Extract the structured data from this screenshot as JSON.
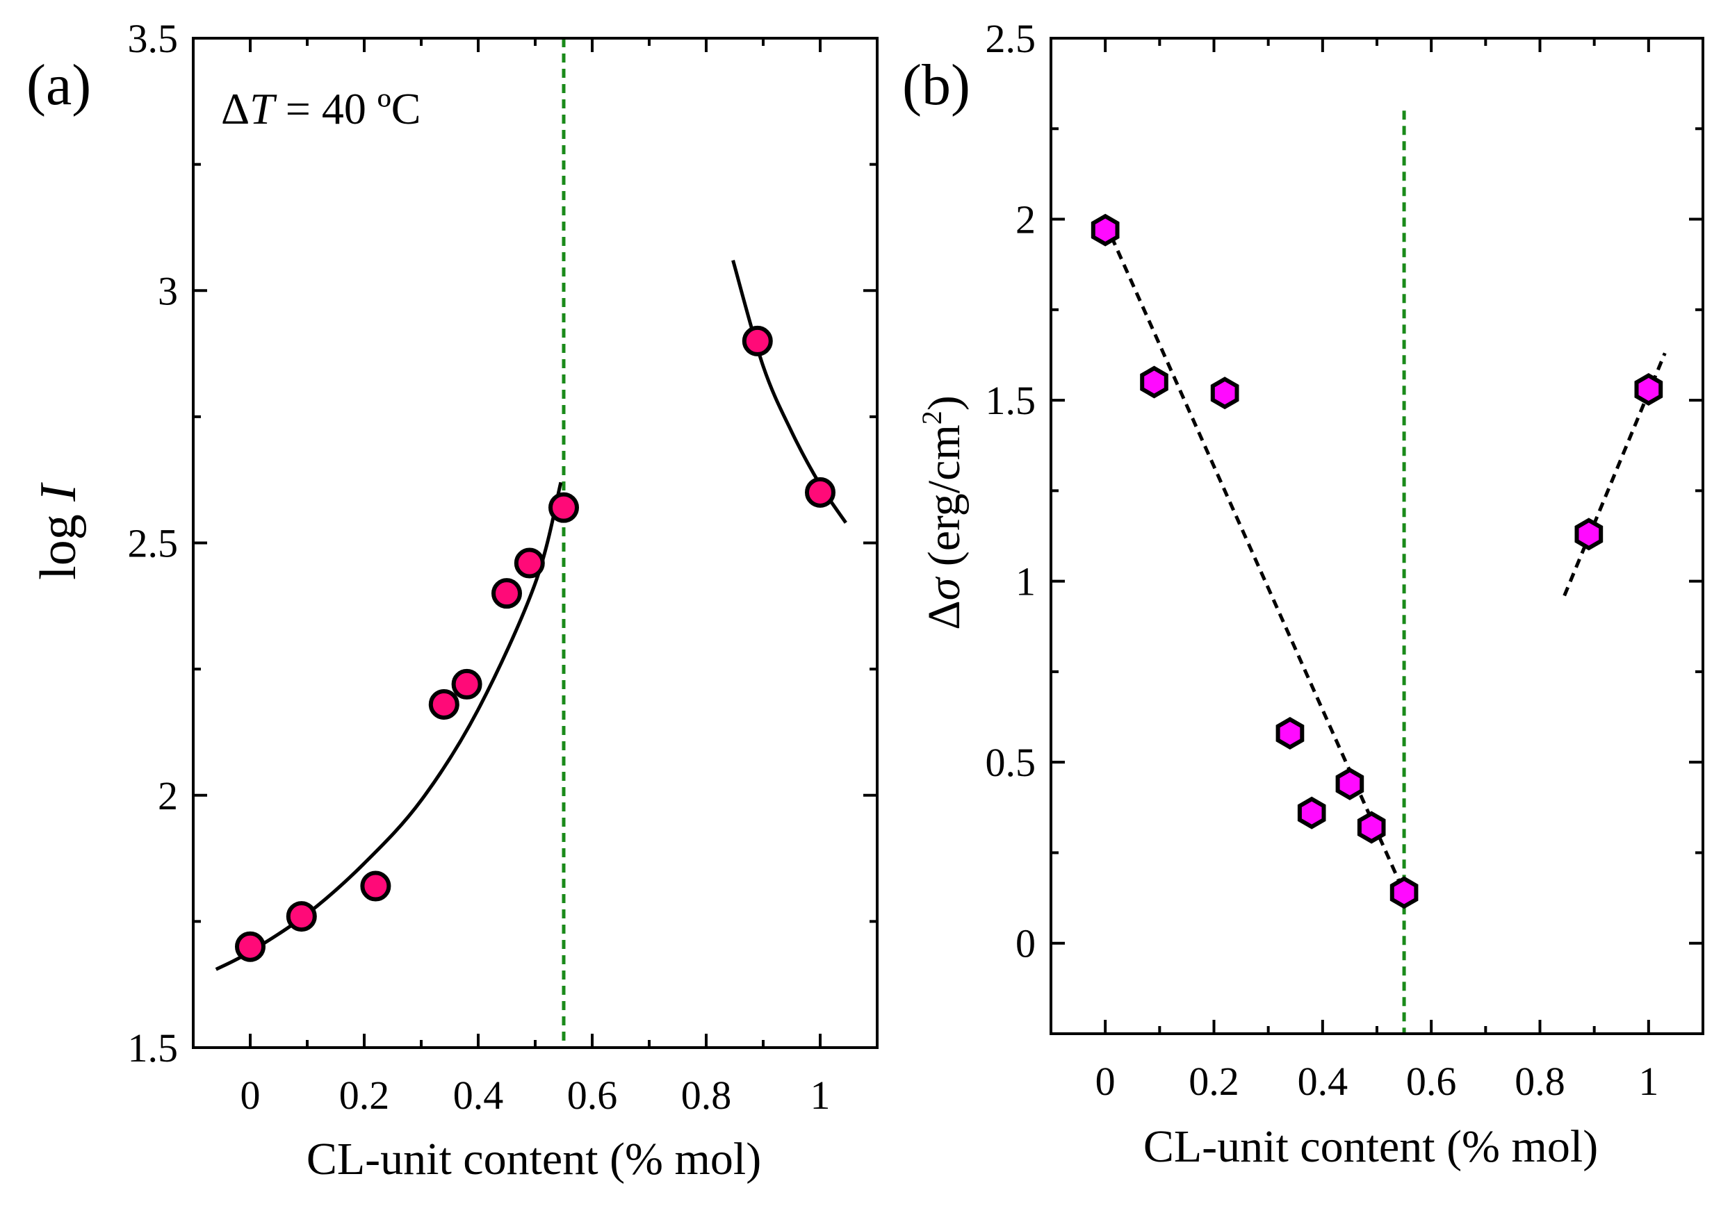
{
  "chart_data": [
    {
      "type": "scatter",
      "panel_label": "(a)",
      "annotation": {
        "delta": "Δ",
        "var": "T",
        "rest": " = 40 ºC"
      },
      "xlabel": "CL-unit content (% mol)",
      "ylabel": {
        "prefix": "log ",
        "var": "I"
      },
      "xlim": [
        -0.1,
        1.1
      ],
      "ylim": [
        1.5,
        3.5
      ],
      "xticks": [
        0,
        0.2,
        0.4,
        0.6,
        0.8,
        1
      ],
      "yticks": [
        1.5,
        2,
        2.5,
        3,
        3.5
      ],
      "xtick_labels": [
        "0",
        "0.2",
        "0.4",
        "0.6",
        "0.8",
        "1"
      ],
      "ytick_labels": [
        "1.5",
        "2",
        "2.5",
        "3",
        "3.5"
      ],
      "marker": "circle",
      "marker_color": "#ff0a78",
      "series": [
        {
          "x": [
            0,
            0.09,
            0.22,
            0.34,
            0.38,
            0.45,
            0.49,
            0.55,
            0.89,
            1.0
          ],
          "y": [
            1.7,
            1.76,
            1.82,
            2.18,
            2.22,
            2.4,
            2.46,
            2.57,
            2.9,
            2.6
          ]
        }
      ],
      "fits": [
        {
          "style": "solid",
          "x": [
            -0.06,
            0.0,
            0.1,
            0.2,
            0.3,
            0.4,
            0.5,
            0.545
          ],
          "y": [
            1.655,
            1.69,
            1.765,
            1.865,
            1.99,
            2.17,
            2.42,
            2.62
          ]
        },
        {
          "style": "solid",
          "x": [
            0.847,
            0.9,
            0.95,
            1.0,
            1.045
          ],
          "y": [
            3.06,
            2.85,
            2.72,
            2.615,
            2.54
          ]
        }
      ],
      "vline": {
        "x": 0.55,
        "color": "#1a8a1a",
        "style": "dashed"
      }
    },
    {
      "type": "scatter",
      "panel_label": "(b)",
      "xlabel": "CL-unit content (% mol)",
      "ylabel": {
        "prefix": "Δ",
        "var": "σ",
        "unit": " (erg/cm",
        "sup": "2",
        "close": ")"
      },
      "xlim": [
        -0.1,
        1.1
      ],
      "ylim": [
        -0.25,
        2.5
      ],
      "xticks": [
        0,
        0.2,
        0.4,
        0.6,
        0.8,
        1
      ],
      "yticks": [
        0,
        0.5,
        1,
        1.5,
        2,
        2.5
      ],
      "xtick_labels": [
        "0",
        "0.2",
        "0.4",
        "0.6",
        "0.8",
        "1"
      ],
      "ytick_labels": [
        "0",
        "0.5",
        "1",
        "1.5",
        "2",
        "2.5"
      ],
      "marker": "hexagon",
      "marker_color": "#ff0aff",
      "series": [
        {
          "x": [
            0,
            0.09,
            0.22,
            0.34,
            0.38,
            0.45,
            0.49,
            0.55,
            0.89,
            1.0
          ],
          "y": [
            1.97,
            1.55,
            1.52,
            0.58,
            0.36,
            0.44,
            0.32,
            0.14,
            1.13,
            1.53
          ]
        }
      ],
      "fits": [
        {
          "style": "dashed",
          "x": [
            0.0,
            0.55
          ],
          "y": [
            1.99,
            0.14
          ]
        },
        {
          "style": "dashed",
          "x": [
            0.845,
            1.03
          ],
          "y": [
            0.96,
            1.63
          ]
        }
      ],
      "vline": {
        "x": 0.55,
        "y_top": 2.3,
        "color": "#1a8a1a",
        "style": "dashed"
      }
    }
  ]
}
